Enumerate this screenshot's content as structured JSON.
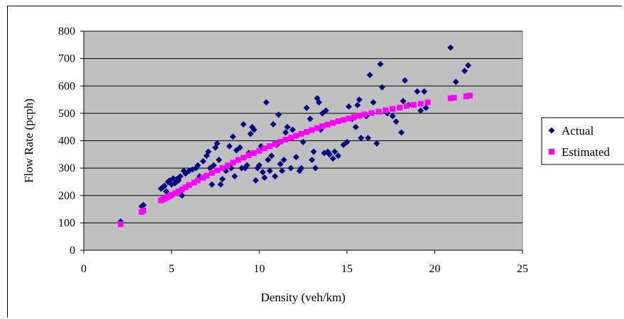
{
  "chart_data": {
    "type": "scatter",
    "title": "",
    "xlabel": "Density (veh/km)",
    "ylabel": "Flow Rate (pcph)",
    "xlim": [
      0,
      25
    ],
    "ylim": [
      0,
      800
    ],
    "xticks": [
      0,
      5,
      10,
      15,
      20,
      25
    ],
    "yticks": [
      0,
      100,
      200,
      300,
      400,
      500,
      600,
      700,
      800
    ],
    "grid": "horizontal",
    "plot_background": "#c0c0c0",
    "legend_position": "right",
    "series": [
      {
        "name": "Actual",
        "marker": "diamond",
        "color": "#000080",
        "points": [
          [
            2.1,
            105
          ],
          [
            3.3,
            160
          ],
          [
            3.4,
            165
          ],
          [
            4.4,
            225
          ],
          [
            4.5,
            230
          ],
          [
            4.6,
            235
          ],
          [
            4.7,
            215
          ],
          [
            4.8,
            250
          ],
          [
            4.9,
            255
          ],
          [
            5.0,
            240
          ],
          [
            5.1,
            262
          ],
          [
            5.2,
            245
          ],
          [
            5.3,
            260
          ],
          [
            5.4,
            255
          ],
          [
            5.5,
            270
          ],
          [
            5.6,
            200
          ],
          [
            5.7,
            290
          ],
          [
            5.8,
            280
          ],
          [
            6.0,
            290
          ],
          [
            6.2,
            295
          ],
          [
            6.4,
            300
          ],
          [
            6.5,
            310
          ],
          [
            6.6,
            270
          ],
          [
            6.8,
            325
          ],
          [
            7.0,
            345
          ],
          [
            7.1,
            360
          ],
          [
            7.2,
            300
          ],
          [
            7.3,
            240
          ],
          [
            7.4,
            310
          ],
          [
            7.5,
            375
          ],
          [
            7.6,
            390
          ],
          [
            7.7,
            330
          ],
          [
            7.8,
            240
          ],
          [
            7.9,
            260
          ],
          [
            8.1,
            290
          ],
          [
            8.3,
            380
          ],
          [
            8.4,
            300
          ],
          [
            8.5,
            415
          ],
          [
            8.6,
            270
          ],
          [
            8.7,
            365
          ],
          [
            8.9,
            375
          ],
          [
            9.0,
            300
          ],
          [
            9.1,
            460
          ],
          [
            9.2,
            300
          ],
          [
            9.3,
            310
          ],
          [
            9.4,
            355
          ],
          [
            9.5,
            425
          ],
          [
            9.6,
            450
          ],
          [
            9.7,
            440
          ],
          [
            9.8,
            255
          ],
          [
            9.9,
            300
          ],
          [
            10.0,
            310
          ],
          [
            10.1,
            380
          ],
          [
            10.2,
            285
          ],
          [
            10.3,
            265
          ],
          [
            10.4,
            540
          ],
          [
            10.5,
            330
          ],
          [
            10.6,
            290
          ],
          [
            10.7,
            345
          ],
          [
            10.8,
            460
          ],
          [
            10.9,
            270
          ],
          [
            11.0,
            385
          ],
          [
            11.1,
            495
          ],
          [
            11.2,
            315
          ],
          [
            11.3,
            290
          ],
          [
            11.4,
            330
          ],
          [
            11.5,
            430
          ],
          [
            11.6,
            450
          ],
          [
            11.8,
            300
          ],
          [
            11.9,
            440
          ],
          [
            12.1,
            340
          ],
          [
            12.3,
            290
          ],
          [
            12.4,
            300
          ],
          [
            12.5,
            395
          ],
          [
            12.7,
            520
          ],
          [
            12.9,
            480
          ],
          [
            13.0,
            330
          ],
          [
            13.1,
            360
          ],
          [
            13.2,
            300
          ],
          [
            13.3,
            555
          ],
          [
            13.4,
            540
          ],
          [
            13.5,
            440
          ],
          [
            13.6,
            500
          ],
          [
            13.7,
            355
          ],
          [
            13.8,
            510
          ],
          [
            13.9,
            360
          ],
          [
            14.0,
            350
          ],
          [
            14.2,
            335
          ],
          [
            14.3,
            360
          ],
          [
            14.5,
            345
          ],
          [
            14.8,
            385
          ],
          [
            15.0,
            395
          ],
          [
            15.1,
            525
          ],
          [
            15.3,
            480
          ],
          [
            15.5,
            450
          ],
          [
            15.6,
            530
          ],
          [
            15.7,
            550
          ],
          [
            15.8,
            410
          ],
          [
            16.1,
            490
          ],
          [
            16.2,
            410
          ],
          [
            16.3,
            640
          ],
          [
            16.5,
            540
          ],
          [
            16.7,
            390
          ],
          [
            16.9,
            680
          ],
          [
            17.0,
            595
          ],
          [
            17.3,
            500
          ],
          [
            17.6,
            490
          ],
          [
            17.8,
            470
          ],
          [
            18.1,
            430
          ],
          [
            18.2,
            545
          ],
          [
            18.3,
            620
          ],
          [
            18.5,
            530
          ],
          [
            19.0,
            580
          ],
          [
            19.2,
            510
          ],
          [
            19.4,
            580
          ],
          [
            19.5,
            520
          ],
          [
            20.9,
            740
          ],
          [
            21.2,
            615
          ],
          [
            21.7,
            655
          ],
          [
            21.9,
            675
          ]
        ]
      },
      {
        "name": "Estimated",
        "marker": "square",
        "color": "#ff00ff",
        "points": [
          [
            2.1,
            95
          ],
          [
            3.3,
            140
          ],
          [
            3.4,
            145
          ],
          [
            4.4,
            182
          ],
          [
            4.5,
            185
          ],
          [
            4.6,
            188
          ],
          [
            4.7,
            192
          ],
          [
            4.8,
            195
          ],
          [
            4.9,
            198
          ],
          [
            5.0,
            202
          ],
          [
            5.2,
            208
          ],
          [
            5.4,
            215
          ],
          [
            5.6,
            222
          ],
          [
            5.8,
            230
          ],
          [
            6.0,
            238
          ],
          [
            6.3,
            247
          ],
          [
            6.5,
            255
          ],
          [
            6.8,
            265
          ],
          [
            7.0,
            272
          ],
          [
            7.3,
            282
          ],
          [
            7.6,
            292
          ],
          [
            7.9,
            300
          ],
          [
            8.2,
            310
          ],
          [
            8.5,
            320
          ],
          [
            8.8,
            330
          ],
          [
            9.1,
            338
          ],
          [
            9.4,
            347
          ],
          [
            9.7,
            355
          ],
          [
            10.0,
            363
          ],
          [
            10.3,
            372
          ],
          [
            10.6,
            380
          ],
          [
            10.9,
            388
          ],
          [
            11.2,
            396
          ],
          [
            11.5,
            404
          ],
          [
            11.8,
            411
          ],
          [
            12.1,
            418
          ],
          [
            12.4,
            425
          ],
          [
            12.7,
            432
          ],
          [
            13.0,
            439
          ],
          [
            13.3,
            446
          ],
          [
            13.6,
            453
          ],
          [
            13.9,
            459
          ],
          [
            14.2,
            465
          ],
          [
            14.5,
            471
          ],
          [
            14.8,
            476
          ],
          [
            15.1,
            481
          ],
          [
            15.4,
            486
          ],
          [
            15.7,
            491
          ],
          [
            16.0,
            496
          ],
          [
            16.4,
            501
          ],
          [
            16.8,
            506
          ],
          [
            17.2,
            511
          ],
          [
            17.6,
            516
          ],
          [
            18.0,
            521
          ],
          [
            18.4,
            527
          ],
          [
            18.8,
            531
          ],
          [
            19.2,
            535
          ],
          [
            19.6,
            540
          ],
          [
            20.9,
            555
          ],
          [
            21.1,
            557
          ],
          [
            21.8,
            562
          ],
          [
            22.0,
            565
          ]
        ]
      }
    ]
  }
}
